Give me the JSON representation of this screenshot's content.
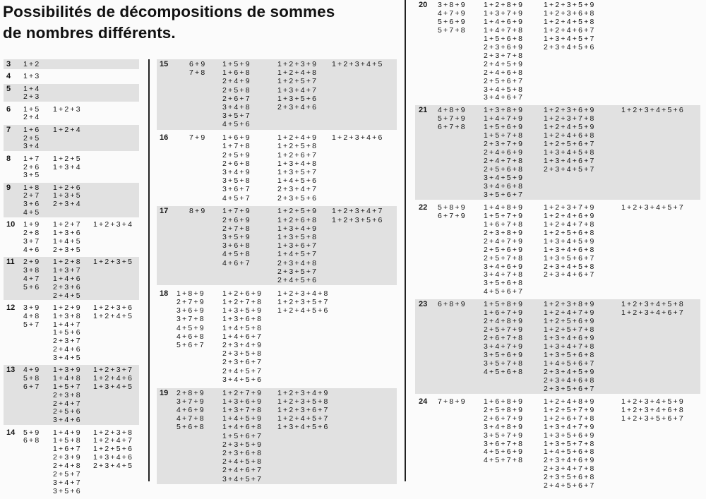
{
  "title": {
    "line1": "Possibilités de décompositions de sommes",
    "line2": "de nombres différents."
  },
  "colors": {
    "shade": "#e1e1e1",
    "text": "#141414",
    "divider": "#222222"
  },
  "blocks": [
    {
      "sums": [
        {
          "n": "3",
          "groups": [
            [
              "1+2"
            ]
          ]
        },
        {
          "n": "4",
          "groups": [
            [
              "1+3"
            ]
          ]
        },
        {
          "n": "5",
          "groups": [
            [
              "1+4",
              "2+3"
            ]
          ]
        },
        {
          "n": "6",
          "groups": [
            [
              "1+5",
              "2+4"
            ],
            [
              "1+2+3"
            ]
          ]
        },
        {
          "n": "7",
          "groups": [
            [
              "1+6",
              "2+5",
              "3+4"
            ],
            [
              "1+2+4"
            ]
          ]
        },
        {
          "n": "8",
          "groups": [
            [
              "1+7",
              "2+6",
              "3+5"
            ],
            [
              "1+2+5",
              "1+3+4"
            ]
          ]
        },
        {
          "n": "9",
          "groups": [
            [
              "1+8",
              "2+7",
              "3+6",
              "4+5"
            ],
            [
              "1+2+6",
              "1+3+5",
              "2+3+4"
            ]
          ]
        },
        {
          "n": "10",
          "groups": [
            [
              "1+9",
              "2+8",
              "3+7",
              "4+6"
            ],
            [
              "1+2+7",
              "1+3+6",
              "1+4+5",
              "2+3+5"
            ],
            [
              "1+2+3+4"
            ]
          ]
        },
        {
          "n": "11",
          "groups": [
            [
              "2+9",
              "3+8",
              "4+7",
              "5+6"
            ],
            [
              "1+2+8",
              "1+3+7",
              "1+4+6",
              "2+3+6",
              "2+4+5"
            ],
            [
              "1+2+3+5"
            ]
          ]
        },
        {
          "n": "12",
          "groups": [
            [
              "3+9",
              "4+8",
              "5+7"
            ],
            [
              "1+2+9",
              "1+3+8",
              "1+4+7",
              "1+5+6",
              "2+3+7",
              "2+4+6",
              "3+4+5"
            ],
            [
              "1+2+3+6",
              "1+2+4+5"
            ]
          ]
        },
        {
          "n": "13",
          "groups": [
            [
              "4+9",
              "5+8",
              "6+7"
            ],
            [
              "1+3+9",
              "1+4+8",
              "1+5+7",
              "2+3+8",
              "2+4+7",
              "2+5+6",
              "3+4+6"
            ],
            [
              "1+2+3+7",
              "1+2+4+6",
              "1+3+4+5"
            ]
          ]
        },
        {
          "n": "14",
          "groups": [
            [
              "5+9",
              "6+8"
            ],
            [
              "1+4+9",
              "1+5+8",
              "1+6+7",
              "2+3+9",
              "2+4+8",
              "2+5+7",
              "3+4+7",
              "3+5+6"
            ],
            [
              "1+2+3+8",
              "1+2+4+7",
              "1+2+5+6",
              "1+3+4+6",
              "2+3+4+5"
            ]
          ]
        }
      ]
    },
    {
      "sums": [
        {
          "n": "15",
          "groups": [
            [
              "6+9",
              "7+8"
            ],
            [
              "1+5+9",
              "1+6+8",
              "2+4+9",
              "2+5+8",
              "2+6+7",
              "3+4+8",
              "3+5+7",
              "4+5+6"
            ],
            [
              "1+2+3+9",
              "1+2+4+8",
              "1+2+5+7",
              "1+3+4+7",
              "1+3+5+6",
              "2+3+4+6"
            ],
            [
              "1+2+3+4+5"
            ]
          ]
        },
        {
          "n": "16",
          "groups": [
            [
              "7+9"
            ],
            [
              "1+6+9",
              "1+7+8",
              "2+5+9",
              "2+6+8",
              "3+4+9",
              "3+5+8",
              "3+6+7",
              "4+5+7"
            ],
            [
              "1+2+4+9",
              "1+2+5+8",
              "1+2+6+7",
              "1+3+4+8",
              "1+3+5+7",
              "1+4+5+6",
              "2+3+4+7",
              "2+3+5+6"
            ],
            [
              "1+2+3+4+6"
            ]
          ]
        },
        {
          "n": "17",
          "groups": [
            [
              "8+9"
            ],
            [
              "1+7+9",
              "2+6+9",
              "2+7+8",
              "3+5+9",
              "3+6+8",
              "4+5+8",
              "4+6+7"
            ],
            [
              "1+2+5+9",
              "1+2+6+8",
              "1+3+4+9",
              "1+3+5+8",
              "1+3+6+7",
              "1+4+5+7",
              "2+3+4+8",
              "2+3+5+7",
              "2+4+5+6"
            ],
            [
              "1+2+3+4+7",
              "1+2+3+5+6"
            ]
          ]
        },
        {
          "n": "18",
          "groups": [
            [
              "1+8+9",
              "2+7+9",
              "3+6+9",
              "3+7+8",
              "4+5+9",
              "4+6+8",
              "5+6+7"
            ],
            [
              "1+2+6+9",
              "1+2+7+8",
              "1+3+5+9",
              "1+3+6+8",
              "1+4+5+8",
              "1+4+6+7",
              "2+3+4+9",
              "2+3+5+8",
              "2+3+6+7",
              "2+4+5+7",
              "3+4+5+6"
            ],
            [
              "1+2+3+4+8",
              "1+2+3+5+7",
              "1+2+4+5+6"
            ]
          ]
        },
        {
          "n": "19",
          "groups": [
            [
              "2+8+9",
              "3+7+9",
              "4+6+9",
              "4+7+8",
              "5+6+8"
            ],
            [
              "1+2+7+9",
              "1+3+6+9",
              "1+3+7+8",
              "1+4+5+9",
              "1+4+6+8",
              "1+5+6+7",
              "2+3+5+9",
              "2+3+6+8",
              "2+4+5+8",
              "2+4+6+7",
              "3+4+5+7"
            ],
            [
              "1+2+3+4+9",
              "1+2+3+5+8",
              "1+2+3+6+7",
              "1+2+4+5+7",
              "1+3+4+5+6"
            ]
          ]
        }
      ]
    },
    {
      "sums": [
        {
          "n": "20",
          "groups": [
            [
              "3+8+9",
              "4+7+9",
              "5+6+9",
              "5+7+8"
            ],
            [
              "1+2+8+9",
              "1+3+7+9",
              "1+4+6+9",
              "1+4+7+8",
              "1+5+6+8",
              "2+3+6+9",
              "2+3+7+8",
              "2+4+5+9",
              "2+4+6+8",
              "2+5+6+7",
              "3+4+5+8",
              "3+4+6+7"
            ],
            [
              "1+2+3+5+9",
              "1+2+3+6+8",
              "1+2+4+5+8",
              "1+2+4+6+7",
              "1+3+4+5+7",
              "2+3+4+5+6"
            ]
          ]
        },
        {
          "n": "21",
          "groups": [
            [
              "4+8+9",
              "5+7+9",
              "6+7+8"
            ],
            [
              "1+3+8+9",
              "1+4+7+9",
              "1+5+6+9",
              "1+5+7+8",
              "2+3+7+9",
              "2+4+6+9",
              "2+4+7+8",
              "2+5+6+8",
              "3+4+5+9",
              "3+4+6+8",
              "3+5+6+7"
            ],
            [
              "1+2+3+6+9",
              "1+2+3+7+8",
              "1+2+4+5+9",
              "1+2+4+6+8",
              "1+2+5+6+7",
              "1+3+4+5+8",
              "1+3+4+6+7",
              "2+3+4+5+7"
            ],
            [
              "1+2+3+4+5+6"
            ]
          ]
        },
        {
          "n": "22",
          "groups": [
            [
              "5+8+9",
              "6+7+9"
            ],
            [
              "1+4+8+9",
              "1+5+7+9",
              "1+6+7+8",
              "2+3+8+9",
              "2+4+7+9",
              "2+5+6+9",
              "2+5+7+8",
              "3+4+6+9",
              "3+4+7+8",
              "3+5+6+8",
              "4+5+6+7"
            ],
            [
              "1+2+3+7+9",
              "1+2+4+6+9",
              "1+2+4+7+8",
              "1+2+5+6+8",
              "1+3+4+5+9",
              "1+3+4+6+8",
              "1+3+5+6+7",
              "2+3+4+5+8",
              "2+3+4+6+7"
            ],
            [
              "1+2+3+4+5+7"
            ]
          ]
        },
        {
          "n": "23",
          "groups": [
            [
              "6+8+9"
            ],
            [
              "1+5+8+9",
              "1+6+7+9",
              "2+4+8+9",
              "2+5+7+9",
              "2+6+7+8",
              "3+4+7+9",
              "3+5+6+9",
              "3+5+7+8",
              "4+5+6+8"
            ],
            [
              "1+2+3+8+9",
              "1+2+4+7+9",
              "1+2+5+6+9",
              "1+2+5+7+8",
              "1+3+4+6+9",
              "1+3+4+7+8",
              "1+3+5+6+8",
              "1+4+5+6+7",
              "2+3+4+5+9",
              "2+3+4+6+8",
              "2+3+5+6+7"
            ],
            [
              "1+2+3+4+5+8",
              "1+2+3+4+6+7"
            ]
          ]
        },
        {
          "n": "24",
          "groups": [
            [
              "7+8+9"
            ],
            [
              "1+6+8+9",
              "2+5+8+9",
              "2+6+7+9",
              "3+4+8+9",
              "3+5+7+9",
              "3+6+7+8",
              "4+5+6+9",
              "4+5+7+8"
            ],
            [
              "1+2+4+8+9",
              "1+2+5+7+9",
              "1+2+6+7+8",
              "1+3+4+7+9",
              "1+3+5+6+9",
              "1+3+5+7+8",
              "1+4+5+6+8",
              "2+3+4+6+9",
              "2+3+4+7+8",
              "2+3+5+6+8",
              "2+4+5+6+7"
            ],
            [
              "1+2+3+4+5+9",
              "1+2+3+4+6+8",
              "1+2+3+5+6+7"
            ]
          ]
        }
      ]
    }
  ]
}
